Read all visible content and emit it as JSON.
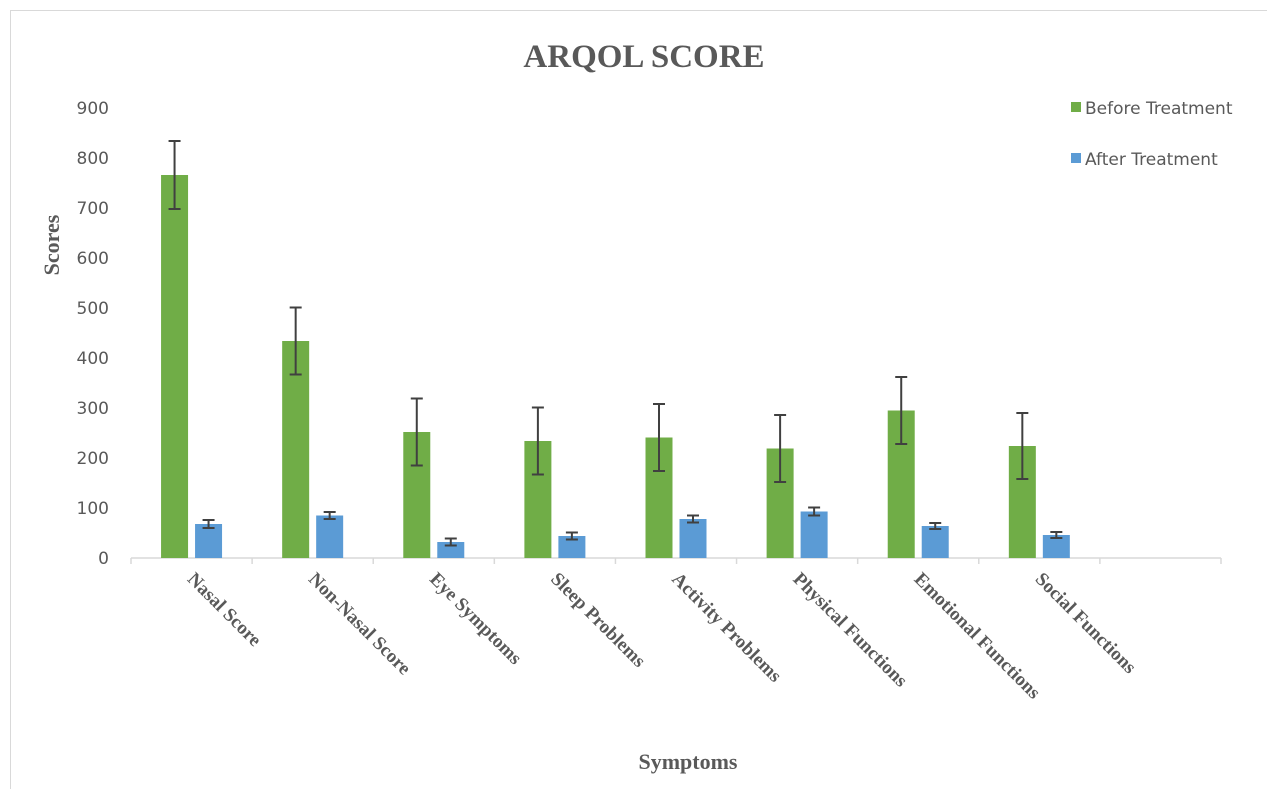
{
  "chart_data": {
    "type": "bar",
    "title": "ARQOL SCORE",
    "xlabel": "Symptoms",
    "ylabel": "Scores",
    "ylim": [
      0,
      900
    ],
    "yticks": [
      0,
      100,
      200,
      300,
      400,
      500,
      600,
      700,
      800,
      900
    ],
    "grid": false,
    "legend_position": "top-right",
    "categories": [
      "Nasal Score",
      "Non-Nasal Score",
      "Eye Symptoms",
      "Sleep Problems",
      "Activity Problems",
      "Physical Functions",
      "Emotional Functions",
      "Social Functions"
    ],
    "series": [
      {
        "name": "Before Treatment",
        "color": "#70ad47",
        "values": [
          766,
          434,
          252,
          234,
          241,
          219,
          295,
          224
        ],
        "error": [
          68,
          67,
          67,
          67,
          67,
          67,
          67,
          66
        ]
      },
      {
        "name": "After Treatment",
        "color": "#5b9bd5",
        "values": [
          68,
          85,
          32,
          44,
          78,
          93,
          64,
          46
        ],
        "error": [
          8,
          7,
          7,
          7,
          7,
          8,
          6,
          6
        ]
      }
    ]
  }
}
